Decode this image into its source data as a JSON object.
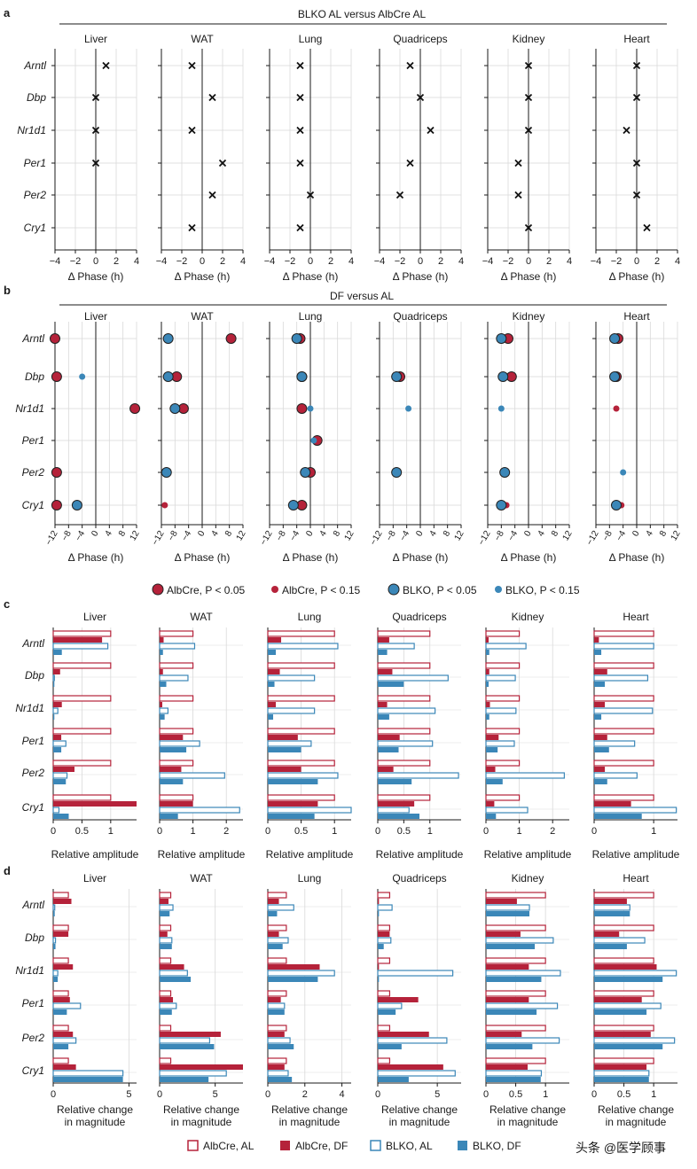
{
  "genes": [
    "Arntl",
    "Dbp",
    "Nr1d1",
    "Per1",
    "Per2",
    "Cry1"
  ],
  "tissues": [
    "Liver",
    "WAT",
    "Lung",
    "Quadriceps",
    "Kidney",
    "Heart"
  ],
  "colors": {
    "albcre": "#b5223a",
    "blko": "#3b87b8",
    "cross": "#111111",
    "grid": "#d9d9d9",
    "axis": "#1a1a1a"
  },
  "panel_a": {
    "letter": "a",
    "header": "BLKO AL versus AlbCre AL",
    "xlabel": "Δ Phase (h)",
    "ticks": [
      "−4",
      "−2",
      "0",
      "2",
      "4"
    ],
    "chart_data": {
      "type": "scatter",
      "xlim": [
        -4,
        4
      ],
      "ticks": [
        -4,
        -2,
        0,
        2,
        4
      ],
      "marker": "cross",
      "values": {
        "Liver": [
          1,
          0,
          0,
          0,
          null,
          null
        ],
        "WAT": [
          -1,
          1,
          -1,
          2,
          1,
          -1
        ],
        "Lung": [
          -1,
          -1,
          -1,
          -1,
          0,
          -1
        ],
        "Quadriceps": [
          -1,
          0,
          1,
          -1,
          -2,
          null
        ],
        "Kidney": [
          0,
          0,
          0,
          -1,
          -1,
          0
        ],
        "Heart": [
          0,
          0,
          -1,
          0,
          0,
          1
        ]
      }
    }
  },
  "panel_b": {
    "letter": "b",
    "header": "DF versus AL",
    "xlabel": "Δ Phase (h)",
    "ticks": [
      "−12",
      "−8",
      "−4",
      "0",
      "4",
      "8",
      "12"
    ],
    "legend": [
      "AlbCre, P < 0.05",
      "AlbCre, P < 0.15",
      "BLKO, P < 0.05",
      "BLKO, P < 0.15"
    ],
    "chart_data": {
      "type": "scatter",
      "xlim": [
        -12,
        12
      ],
      "ticks": [
        -12,
        -8,
        -4,
        0,
        4,
        8,
        12
      ],
      "albcre": {
        "Liver": [
          [
            -12,
            "s"
          ],
          [
            -11.5,
            "s"
          ],
          [
            11.5,
            "s"
          ],
          null,
          [
            -11.5,
            "s"
          ],
          [
            -11.5,
            "s"
          ]
        ],
        "WAT": [
          [
            8.5,
            "s"
          ],
          [
            -7.5,
            "s"
          ],
          [
            -5.5,
            "s"
          ],
          null,
          null,
          [
            -11,
            "w"
          ]
        ],
        "Lung": [
          [
            -3,
            "s"
          ],
          [
            -2.5,
            "s"
          ],
          [
            -2.5,
            "s"
          ],
          [
            2,
            "s"
          ],
          [
            0,
            "s"
          ],
          [
            -2.5,
            "s"
          ]
        ],
        "Quadriceps": [
          null,
          [
            -6,
            "s"
          ],
          null,
          null,
          null,
          null
        ],
        "Kidney": [
          [
            -6,
            "s"
          ],
          [
            -5,
            "s"
          ],
          null,
          null,
          null,
          [
            -6.5,
            "w"
          ]
        ],
        "Heart": [
          [
            -5.5,
            "s"
          ],
          [
            -6,
            "s"
          ],
          [
            -6,
            "w"
          ],
          null,
          null,
          [
            -4.5,
            "w"
          ]
        ]
      },
      "blko": {
        "Liver": [
          null,
          [
            -4,
            "w"
          ],
          null,
          null,
          null,
          [
            -5.5,
            "s"
          ]
        ],
        "WAT": [
          [
            -10,
            "s"
          ],
          [
            -10,
            "s"
          ],
          [
            -8,
            "s"
          ],
          null,
          [
            -10.5,
            "s"
          ],
          null
        ],
        "Lung": [
          [
            -4,
            "s"
          ],
          [
            -2.5,
            "s"
          ],
          [
            0,
            "w"
          ],
          [
            1,
            "w"
          ],
          [
            -1.5,
            "s"
          ],
          [
            -5,
            "s"
          ]
        ],
        "Quadriceps": [
          null,
          [
            -7,
            "s"
          ],
          [
            -3.5,
            "w"
          ],
          null,
          [
            -7,
            "s"
          ],
          null
        ],
        "Kidney": [
          [
            -8,
            "s"
          ],
          [
            -7.5,
            "s"
          ],
          [
            -8,
            "w"
          ],
          null,
          [
            -7,
            "s"
          ],
          [
            -8,
            "s"
          ]
        ],
        "Heart": [
          [
            -6.5,
            "s"
          ],
          [
            -6.5,
            "s"
          ],
          null,
          null,
          [
            -4,
            "w"
          ],
          [
            -6,
            "s"
          ]
        ]
      }
    }
  },
  "panel_c": {
    "letter": "c",
    "xlabel": "Relative amplitude",
    "chart_data": {
      "type": "bar",
      "series": [
        "AlbCre, AL",
        "AlbCre, DF",
        "BLKO, AL",
        "BLKO, DF"
      ],
      "axes": {
        "Liver": {
          "max": 1.45,
          "ticks": [
            0,
            0.5,
            1
          ],
          "tick_labels": [
            "0",
            "0.5",
            "1"
          ]
        },
        "WAT": {
          "max": 2.5,
          "ticks": [
            0,
            1,
            2
          ],
          "tick_labels": [
            "0",
            "1",
            "2"
          ]
        },
        "Lung": {
          "max": 1.25,
          "ticks": [
            0,
            0.5,
            1
          ],
          "tick_labels": [
            "0",
            "0.5",
            "1"
          ]
        },
        "Quadriceps": {
          "max": 1.6,
          "ticks": [
            0,
            0.5,
            1
          ],
          "tick_labels": [
            "0",
            "0.5",
            "1"
          ]
        },
        "Kidney": {
          "max": 2.5,
          "ticks": [
            0,
            1,
            2
          ],
          "tick_labels": [
            "0",
            "1",
            "2"
          ]
        },
        "Heart": {
          "max": 1.4,
          "ticks": [
            0,
            1
          ],
          "tick_labels": [
            "0",
            "1"
          ]
        }
      },
      "values": {
        "Liver": [
          [
            1,
            0.85,
            0.95,
            0.15
          ],
          [
            1,
            0.12,
            0.02,
            0.02
          ],
          [
            1,
            0.15,
            0.08,
            0.02
          ],
          [
            1,
            0.14,
            0.22,
            0.14
          ],
          [
            1,
            0.37,
            0.24,
            0.22
          ],
          [
            1,
            1.45,
            0.1,
            0.27
          ]
        ],
        "WAT": [
          [
            1,
            0.12,
            1.05,
            0.1
          ],
          [
            1,
            0.1,
            0.85,
            0.2
          ],
          [
            1,
            0.08,
            0.25,
            0.15
          ],
          [
            1,
            0.7,
            1.2,
            0.8
          ],
          [
            1,
            0.65,
            1.95,
            0.7
          ],
          [
            1,
            1.0,
            2.4,
            0.55
          ]
        ],
        "Lung": [
          [
            1,
            0.2,
            1.05,
            0.12
          ],
          [
            1,
            0.18,
            0.7,
            0.1
          ],
          [
            1,
            0.12,
            0.7,
            0.08
          ],
          [
            1,
            0.45,
            0.65,
            0.5
          ],
          [
            1,
            0.5,
            1.05,
            0.75
          ],
          [
            1,
            0.75,
            1.25,
            0.7
          ]
        ],
        "Quadriceps": [
          [
            1,
            0.22,
            0.7,
            0.18
          ],
          [
            1,
            0.28,
            1.35,
            0.5
          ],
          [
            1,
            0.18,
            1.1,
            0.22
          ],
          [
            1,
            0.42,
            1.05,
            0.4
          ],
          [
            1,
            0.3,
            1.55,
            0.65
          ],
          [
            1,
            0.7,
            0.6,
            0.8
          ]
        ],
        "Kidney": [
          [
            1,
            0.08,
            1.2,
            0.1
          ],
          [
            1,
            0.1,
            0.88,
            0.08
          ],
          [
            1,
            0.12,
            0.9,
            0.1
          ],
          [
            1,
            0.38,
            0.85,
            0.35
          ],
          [
            1,
            0.28,
            2.35,
            0.5
          ],
          [
            1,
            0.25,
            1.25,
            0.3
          ]
        ],
        "Heart": [
          [
            1,
            0.08,
            1.0,
            0.12
          ],
          [
            1,
            0.22,
            0.9,
            0.18
          ],
          [
            1,
            0.18,
            0.98,
            0.12
          ],
          [
            1,
            0.22,
            0.68,
            0.25
          ],
          [
            1,
            0.18,
            0.72,
            0.22
          ],
          [
            1,
            0.62,
            1.38,
            0.8
          ]
        ]
      }
    }
  },
  "panel_d": {
    "letter": "d",
    "xlabel_line1": "Relative change",
    "xlabel_line2": "in magnitude",
    "legend": [
      "AlbCre, AL",
      "AlbCre, DF",
      "BLKO, AL",
      "BLKO, DF"
    ],
    "chart_data": {
      "type": "bar",
      "series": [
        "AlbCre, AL",
        "AlbCre, DF",
        "BLKO, AL",
        "BLKO, DF"
      ],
      "axes": {
        "Liver": {
          "max": 5.5,
          "ticks": [
            0,
            5
          ],
          "tick_labels": [
            "0",
            "5"
          ]
        },
        "WAT": {
          "max": 7.5,
          "ticks": [
            0,
            5
          ],
          "tick_labels": [
            "0",
            "5"
          ]
        },
        "Lung": {
          "max": 4.5,
          "ticks": [
            0,
            2,
            4
          ],
          "tick_labels": [
            "0",
            "2",
            "4"
          ]
        },
        "Quadriceps": {
          "max": 7,
          "ticks": [
            0,
            5
          ],
          "tick_labels": [
            "0",
            "5"
          ]
        },
        "Kidney": {
          "max": 1.4,
          "ticks": [
            0,
            0.5,
            1
          ],
          "tick_labels": [
            "0",
            "0.5",
            "1"
          ]
        },
        "Heart": {
          "max": 1.4,
          "ticks": [
            0,
            0.5,
            1
          ],
          "tick_labels": [
            "0",
            "0.5",
            "1"
          ]
        }
      },
      "values": {
        "Liver": [
          [
            1,
            1.2,
            0.1,
            0.1
          ],
          [
            1,
            1.0,
            0.15,
            0.15
          ],
          [
            1,
            1.3,
            0.3,
            0.3
          ],
          [
            1,
            1.1,
            1.8,
            0.9
          ],
          [
            1,
            1.3,
            1.5,
            1.0
          ],
          [
            1,
            1.5,
            4.6,
            4.6
          ]
        ],
        "WAT": [
          [
            1,
            0.8,
            1.2,
            0.9
          ],
          [
            1,
            0.7,
            1.1,
            1.1
          ],
          [
            1,
            2.2,
            2.5,
            2.8
          ],
          [
            1,
            1.2,
            1.5,
            1.1
          ],
          [
            1,
            5.5,
            4.5,
            4.9
          ],
          [
            1,
            7.5,
            6.0,
            4.4
          ]
        ],
        "Lung": [
          [
            1,
            0.6,
            1.4,
            0.5
          ],
          [
            1,
            0.6,
            1.1,
            0.8
          ],
          [
            1,
            2.8,
            3.6,
            2.7
          ],
          [
            1,
            0.7,
            0.9,
            0.9
          ],
          [
            1,
            0.9,
            1.2,
            1.4
          ],
          [
            1,
            0.9,
            1.1,
            1.3
          ]
        ],
        "Quadriceps": [
          [
            1,
            0.1,
            1.2,
            0.1
          ],
          [
            1,
            1.0,
            1.1,
            0.5
          ],
          [
            1,
            0.1,
            6.3,
            0.1
          ],
          [
            1,
            3.4,
            2.0,
            1.5
          ],
          [
            1,
            4.3,
            5.8,
            2.0
          ],
          [
            1,
            5.5,
            6.5,
            2.6
          ]
        ],
        "Kidney": [
          [
            1,
            0.52,
            0.73,
            0.73
          ],
          [
            1,
            0.58,
            1.13,
            0.82
          ],
          [
            1,
            0.72,
            1.25,
            0.93
          ],
          [
            1,
            0.72,
            1.2,
            0.85
          ],
          [
            1,
            0.6,
            1.23,
            0.78
          ],
          [
            1,
            0.7,
            0.93,
            0.92
          ]
        ],
        "Heart": [
          [
            1,
            0.55,
            0.6,
            0.6
          ],
          [
            1,
            0.42,
            0.85,
            0.55
          ],
          [
            1,
            1.05,
            1.38,
            1.15
          ],
          [
            1,
            0.8,
            1.12,
            0.88
          ],
          [
            1,
            0.95,
            1.35,
            1.15
          ],
          [
            1,
            0.88,
            0.92,
            0.92
          ]
        ]
      }
    }
  },
  "watermark": "头条 @医学顾事"
}
